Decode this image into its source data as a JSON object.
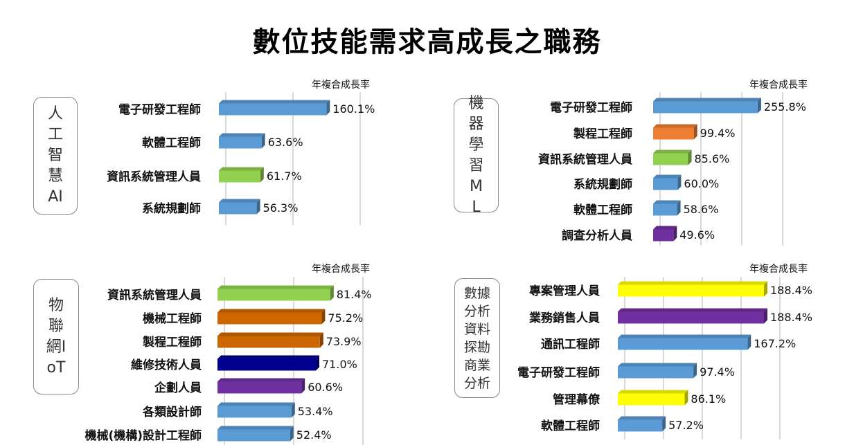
{
  "title": "數位技能需求高成長之職務",
  "chart_data": [
    {
      "type": "bar",
      "orientation": "horizontal",
      "category_title": "人工智慧AI",
      "value_header": "年複合成長率",
      "xlim": [
        0,
        200
      ],
      "grid_step": 100,
      "grid": true,
      "categories": [
        "電子研發工程師",
        "軟體工程師",
        "資訊系統管理人員",
        "系統規劃師"
      ],
      "values": [
        160.1,
        63.6,
        61.7,
        56.3
      ],
      "labels": [
        "160.1%",
        "63.6%",
        "61.7%",
        "56.3%"
      ],
      "colors": [
        "#5b9bd5",
        "#5b9bd5",
        "#92d050",
        "#5b9bd5"
      ]
    },
    {
      "type": "bar",
      "orientation": "horizontal",
      "category_title": "機器學習ML",
      "value_header": "年複合成長率",
      "xlim": [
        0,
        300
      ],
      "grid_step": 100,
      "grid": true,
      "categories": [
        "電子研發工程師",
        "製程工程師",
        "資訊系統管理人員",
        "系統規劃師",
        "軟體工程師",
        "調查分析人員"
      ],
      "values": [
        255.8,
        99.4,
        85.6,
        60.0,
        58.6,
        49.6
      ],
      "labels": [
        "255.8%",
        "99.4%",
        "85.6%",
        "60.0%",
        "58.6%",
        "49.6%"
      ],
      "colors": [
        "#5b9bd5",
        "#ed7d31",
        "#92d050",
        "#5b9bd5",
        "#5b9bd5",
        "#7030a0"
      ]
    },
    {
      "type": "bar",
      "orientation": "horizontal",
      "category_title": "物聯網IoT",
      "value_header": "年複合成長率",
      "xlim": [
        0,
        100
      ],
      "grid_step": 50,
      "grid": true,
      "categories": [
        "資訊系統管理人員",
        "機械工程師",
        "製程工程師",
        "維修技術人員",
        "企劃人員",
        "各類設計師",
        "機械(機構)設計工程師"
      ],
      "values": [
        81.4,
        75.2,
        73.9,
        71.0,
        60.6,
        53.4,
        52.4
      ],
      "labels": [
        "81.4%",
        "75.2%",
        "73.9%",
        "71.0%",
        "60.6%",
        "53.4%",
        "52.4%"
      ],
      "colors": [
        "#92d050",
        "#cc6600",
        "#cc6600",
        "#000090",
        "#7030a0",
        "#5b9bd5",
        "#5b9bd5"
      ]
    },
    {
      "type": "bar",
      "orientation": "horizontal",
      "category_title": "數據分析資料探勘商業分析",
      "value_header": "年複合成長率",
      "xlim": [
        0,
        200
      ],
      "grid_step": 50,
      "grid": true,
      "categories": [
        "專案管理人員",
        "業務銷售人員",
        "通訊工程師",
        "電子研發工程師",
        "管理幕僚",
        "軟體工程師"
      ],
      "values": [
        188.4,
        188.4,
        167.2,
        97.4,
        86.1,
        57.2
      ],
      "labels": [
        "188.4%",
        "188.4%",
        "167.2%",
        "97.4%",
        "86.1%",
        "57.2%"
      ],
      "colors": [
        "#ffff00",
        "#7030a0",
        "#5b9bd5",
        "#5b9bd5",
        "#ffff00",
        "#5b9bd5"
      ]
    }
  ]
}
